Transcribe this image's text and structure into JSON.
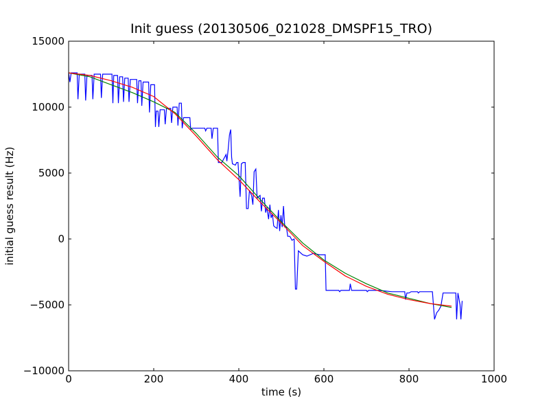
{
  "chart_data": {
    "type": "line",
    "title": "Init guess (20130506_021028_DMSPF15_TRO)",
    "xlabel": "time (s)",
    "ylabel": "initial guess result (Hz)",
    "xlim": [
      0,
      1000
    ],
    "ylim": [
      -10000,
      15000
    ],
    "x_ticks": [
      0,
      200,
      400,
      600,
      800,
      1000
    ],
    "x_tick_labels": [
      "0",
      "200",
      "400",
      "600",
      "800",
      "1000"
    ],
    "y_ticks": [
      -10000,
      -5000,
      0,
      5000,
      10000,
      15000
    ],
    "y_tick_labels": [
      "−10000",
      "−5000",
      "0",
      "5000",
      "10000",
      "15000"
    ],
    "grid": false,
    "legend": "none",
    "series": [
      {
        "color": "#0000ff",
        "points": [
          [
            0,
            12600
          ],
          [
            3,
            11900
          ],
          [
            6,
            12600
          ],
          [
            20,
            12600
          ],
          [
            22,
            10600
          ],
          [
            25,
            12500
          ],
          [
            38,
            12500
          ],
          [
            40,
            10500
          ],
          [
            43,
            12400
          ],
          [
            55,
            12400
          ],
          [
            57,
            10600
          ],
          [
            60,
            12500
          ],
          [
            75,
            12500
          ],
          [
            77,
            10700
          ],
          [
            80,
            12500
          ],
          [
            102,
            12500
          ],
          [
            104,
            10300
          ],
          [
            106,
            12400
          ],
          [
            115,
            12400
          ],
          [
            117,
            10300
          ],
          [
            120,
            12300
          ],
          [
            127,
            12300
          ],
          [
            129,
            10400
          ],
          [
            132,
            12200
          ],
          [
            140,
            12200
          ],
          [
            142,
            10400
          ],
          [
            145,
            12100
          ],
          [
            160,
            12100
          ],
          [
            162,
            10300
          ],
          [
            165,
            12000
          ],
          [
            170,
            12000
          ],
          [
            172,
            10100
          ],
          [
            175,
            11900
          ],
          [
            188,
            11900
          ],
          [
            190,
            9600
          ],
          [
            193,
            11700
          ],
          [
            202,
            11700
          ],
          [
            204,
            8500
          ],
          [
            206,
            9700
          ],
          [
            210,
            9700
          ],
          [
            212,
            8500
          ],
          [
            215,
            9800
          ],
          [
            225,
            9800
          ],
          [
            227,
            8700
          ],
          [
            230,
            9900
          ],
          [
            240,
            9900
          ],
          [
            242,
            8800
          ],
          [
            245,
            10000
          ],
          [
            255,
            10000
          ],
          [
            257,
            8600
          ],
          [
            260,
            10300
          ],
          [
            265,
            10300
          ],
          [
            267,
            8400
          ],
          [
            270,
            9200
          ],
          [
            285,
            9200
          ],
          [
            287,
            8300
          ],
          [
            290,
            8400
          ],
          [
            320,
            8400
          ],
          [
            322,
            8200
          ],
          [
            325,
            8400
          ],
          [
            335,
            8400
          ],
          [
            337,
            7600
          ],
          [
            340,
            8400
          ],
          [
            350,
            8400
          ],
          [
            352,
            5800
          ],
          [
            360,
            5800
          ],
          [
            370,
            6400
          ],
          [
            372,
            5900
          ],
          [
            375,
            6800
          ],
          [
            378,
            7900
          ],
          [
            381,
            8300
          ],
          [
            383,
            6200
          ],
          [
            385,
            5700
          ],
          [
            392,
            5600
          ],
          [
            395,
            5800
          ],
          [
            398,
            5800
          ],
          [
            400,
            4800
          ],
          [
            403,
            3200
          ],
          [
            406,
            5700
          ],
          [
            410,
            5800
          ],
          [
            415,
            5800
          ],
          [
            418,
            2300
          ],
          [
            422,
            2300
          ],
          [
            425,
            3700
          ],
          [
            430,
            3300
          ],
          [
            433,
            2600
          ],
          [
            436,
            5100
          ],
          [
            440,
            5300
          ],
          [
            443,
            3100
          ],
          [
            446,
            3200
          ],
          [
            450,
            3300
          ],
          [
            453,
            2100
          ],
          [
            456,
            3100
          ],
          [
            460,
            3100
          ],
          [
            463,
            2000
          ],
          [
            466,
            2400
          ],
          [
            470,
            1500
          ],
          [
            473,
            2600
          ],
          [
            476,
            1600
          ],
          [
            479,
            1900
          ],
          [
            482,
            1000
          ],
          [
            485,
            900
          ],
          [
            490,
            800
          ],
          [
            493,
            2200
          ],
          [
            496,
            600
          ],
          [
            499,
            1800
          ],
          [
            502,
            900
          ],
          [
            505,
            2500
          ],
          [
            508,
            900
          ],
          [
            512,
            900
          ],
          [
            515,
            200
          ],
          [
            520,
            200
          ],
          [
            525,
            -100
          ],
          [
            530,
            0
          ],
          [
            533,
            -3800
          ],
          [
            536,
            -3800
          ],
          [
            540,
            -900
          ],
          [
            550,
            -1200
          ],
          [
            560,
            -1300
          ],
          [
            575,
            -1100
          ],
          [
            590,
            -1200
          ],
          [
            603,
            -1200
          ],
          [
            605,
            -3900
          ],
          [
            615,
            -3900
          ],
          [
            635,
            -3900
          ],
          [
            637,
            -4000
          ],
          [
            640,
            -3900
          ],
          [
            660,
            -3900
          ],
          [
            662,
            -3400
          ],
          [
            665,
            -3900
          ],
          [
            700,
            -3900
          ],
          [
            702,
            -4000
          ],
          [
            705,
            -3900
          ],
          [
            730,
            -3900
          ],
          [
            760,
            -4000
          ],
          [
            790,
            -4000
          ],
          [
            792,
            -4600
          ],
          [
            795,
            -4100
          ],
          [
            800,
            -4100
          ],
          [
            805,
            -4000
          ],
          [
            820,
            -4000
          ],
          [
            822,
            -4100
          ],
          [
            825,
            -4000
          ],
          [
            840,
            -4000
          ],
          [
            855,
            -4000
          ],
          [
            860,
            -6100
          ],
          [
            865,
            -5600
          ],
          [
            870,
            -5400
          ],
          [
            875,
            -5100
          ],
          [
            880,
            -4100
          ],
          [
            895,
            -4100
          ],
          [
            902,
            -4100
          ],
          [
            910,
            -4100
          ],
          [
            912,
            -6100
          ],
          [
            915,
            -4100
          ],
          [
            920,
            -5000
          ],
          [
            922,
            -6100
          ],
          [
            925,
            -4700
          ]
        ]
      },
      {
        "color": "#008000",
        "points": [
          [
            0,
            12600
          ],
          [
            50,
            12300
          ],
          [
            100,
            11700
          ],
          [
            150,
            11100
          ],
          [
            200,
            10400
          ],
          [
            250,
            9600
          ],
          [
            300,
            8000
          ],
          [
            350,
            6200
          ],
          [
            400,
            4800
          ],
          [
            450,
            3000
          ],
          [
            500,
            1300
          ],
          [
            550,
            -300
          ],
          [
            600,
            -1600
          ],
          [
            650,
            -2600
          ],
          [
            700,
            -3400
          ],
          [
            750,
            -4100
          ],
          [
            800,
            -4500
          ],
          [
            850,
            -4900
          ],
          [
            900,
            -5200
          ]
        ]
      },
      {
        "color": "#ff0000",
        "points": [
          [
            0,
            12600
          ],
          [
            50,
            12400
          ],
          [
            100,
            12000
          ],
          [
            150,
            11500
          ],
          [
            200,
            10800
          ],
          [
            250,
            9500
          ],
          [
            300,
            7800
          ],
          [
            350,
            6000
          ],
          [
            400,
            4500
          ],
          [
            450,
            2800
          ],
          [
            500,
            1200
          ],
          [
            550,
            -500
          ],
          [
            600,
            -1700
          ],
          [
            650,
            -2800
          ],
          [
            700,
            -3600
          ],
          [
            750,
            -4200
          ],
          [
            800,
            -4600
          ],
          [
            850,
            -4900
          ],
          [
            900,
            -5100
          ]
        ]
      }
    ]
  }
}
